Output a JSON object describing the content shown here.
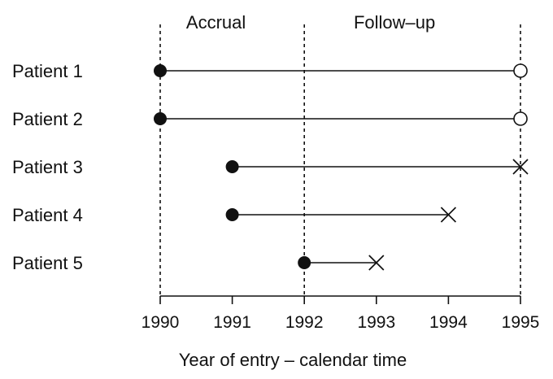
{
  "chart_data": {
    "type": "timeline",
    "xlabel": "Year of entry – calendar time",
    "x_ticks": [
      1990,
      1991,
      1992,
      1993,
      1994,
      1995
    ],
    "xlim": [
      1990,
      1995
    ],
    "period_labels": [
      {
        "text": "Accrual",
        "from": 1990,
        "to": 1992
      },
      {
        "text": "Follow–up",
        "from": 1992,
        "to": 1995
      }
    ],
    "reference_lines": [
      1990,
      1992,
      1995
    ],
    "patients": [
      {
        "label": "Patient 1",
        "entry": 1990,
        "exit": 1995,
        "outcome": "censored"
      },
      {
        "label": "Patient 2",
        "entry": 1990,
        "exit": 1995,
        "outcome": "censored"
      },
      {
        "label": "Patient 3",
        "entry": 1991,
        "exit": 1995,
        "outcome": "event"
      },
      {
        "label": "Patient 4",
        "entry": 1991,
        "exit": 1994,
        "outcome": "event"
      },
      {
        "label": "Patient 5",
        "entry": 1992,
        "exit": 1993,
        "outcome": "event"
      }
    ],
    "markers": {
      "entry": "filled-circle",
      "censored": "open-circle",
      "event": "cross"
    },
    "colors": {
      "ink": "#111111",
      "background": "#ffffff"
    }
  }
}
